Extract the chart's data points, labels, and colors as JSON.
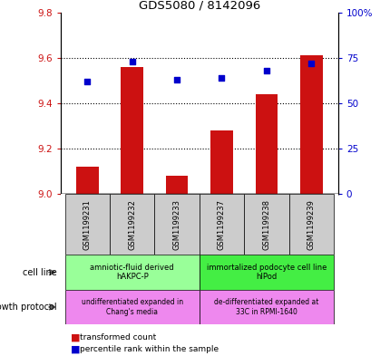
{
  "title": "GDS5080 / 8142096",
  "samples": [
    "GSM1199231",
    "GSM1199232",
    "GSM1199233",
    "GSM1199237",
    "GSM1199238",
    "GSM1199239"
  ],
  "transformed_count": [
    9.12,
    9.56,
    9.08,
    9.28,
    9.44,
    9.61
  ],
  "percentile_rank": [
    62,
    73,
    63,
    64,
    68,
    72
  ],
  "ylim_left": [
    9.0,
    9.8
  ],
  "ylim_right": [
    0,
    100
  ],
  "yticks_left": [
    9.0,
    9.2,
    9.4,
    9.6,
    9.8
  ],
  "yticks_right": [
    0,
    25,
    50,
    75,
    100
  ],
  "ytick_labels_right": [
    "0",
    "25",
    "50",
    "75",
    "100%"
  ],
  "bar_color": "#cc1111",
  "dot_color": "#0000cc",
  "cell_line_label_1": "amniotic-fluid derived\nhAKPC-P",
  "cell_line_label_2": "immortalized podocyte cell line\nhIPod",
  "cell_line_color_1": "#99ff99",
  "cell_line_color_2": "#44ee44",
  "growth_protocol_label_1": "undifferentiated expanded in\nChang's media",
  "growth_protocol_label_2": "de-differentiated expanded at\n33C in RPMI-1640",
  "growth_protocol_color": "#ee88ee",
  "sample_bg_color": "#cccccc",
  "bar_width": 0.5,
  "dotted_lines": [
    9.2,
    9.4,
    9.6
  ],
  "legend_bar_label": "transformed count",
  "legend_dot_label": "percentile rank within the sample"
}
